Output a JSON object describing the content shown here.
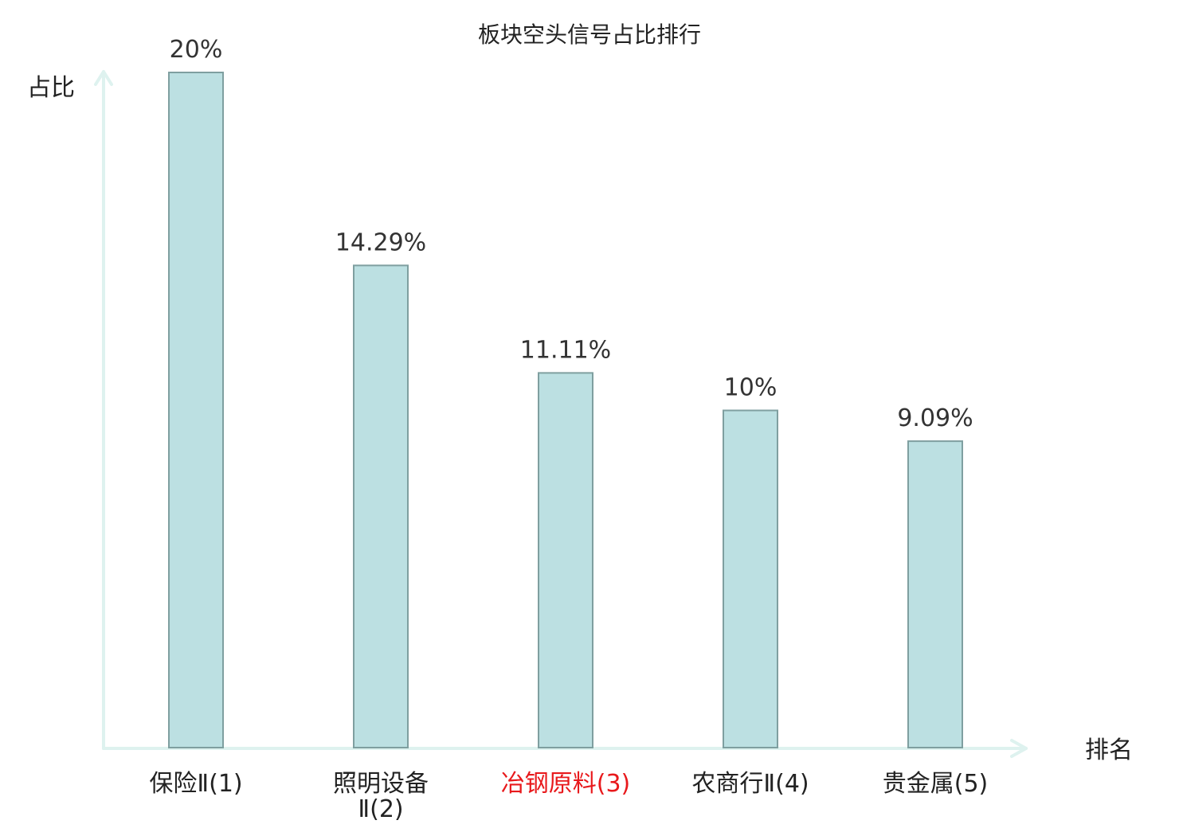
{
  "chart_data": {
    "type": "bar",
    "title": "板块空头信号占比排行",
    "ylabel": "占比",
    "xlabel": "排名",
    "ylim": [
      0,
      20
    ],
    "categories": [
      {
        "lines": [
          "保险Ⅱ(1)"
        ],
        "highlight": false
      },
      {
        "lines": [
          "照明设备",
          "Ⅱ(2)"
        ],
        "highlight": false
      },
      {
        "lines": [
          "冶钢原料(3)"
        ],
        "highlight": true
      },
      {
        "lines": [
          "农商行Ⅱ(4)"
        ],
        "highlight": false
      },
      {
        "lines": [
          "贵金属(5)"
        ],
        "highlight": false
      }
    ],
    "values": [
      20,
      14.29,
      11.11,
      10,
      9.09
    ],
    "value_labels": [
      "20%",
      "14.29%",
      "11.11%",
      "10%",
      "9.09%"
    ],
    "grid": false,
    "colors": {
      "bar_fill": "#bce0e2",
      "bar_stroke": "#7f9fa0",
      "axis": "#def2ef",
      "highlight": "#e8191c"
    }
  }
}
